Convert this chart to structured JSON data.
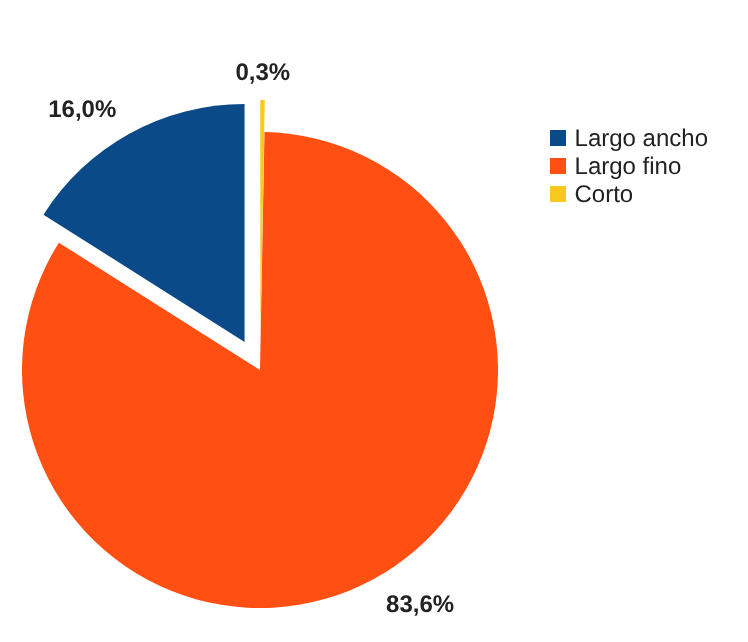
{
  "chart_data": {
    "type": "pie",
    "categories": [
      "Largo ancho",
      "Largo fino",
      "Corto"
    ],
    "values": [
      16.0,
      83.6,
      0.3
    ],
    "colors": [
      "#0b4a88",
      "#ff4f12",
      "#f7c81e"
    ],
    "value_labels": [
      "16,0%",
      "83,6%",
      "0,3%"
    ],
    "legend": "right"
  }
}
